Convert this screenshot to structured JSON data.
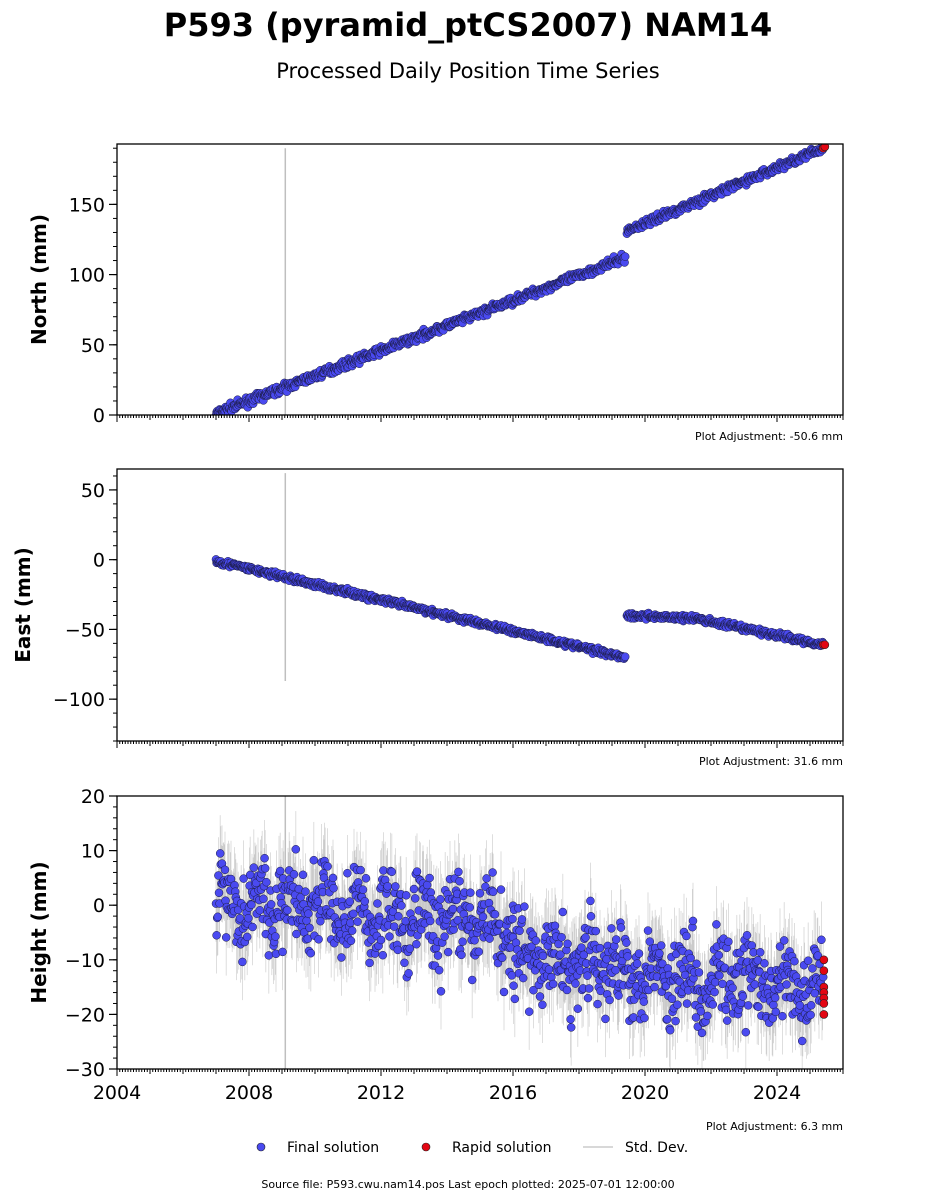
{
  "figure": {
    "title": "P593 (pyramid_ptCS2007) NAM14",
    "subtitle": "Processed Daily Position Time Series",
    "footer": "Source file: P593.cwu.nam14.pos  Last epoch plotted: 2025-07-01 12:00:00"
  },
  "legend": {
    "final": "Final solution",
    "rapid": "Rapid solution",
    "std": "Std. Dev."
  },
  "colors": {
    "final": "#4a4af0",
    "rapid": "#e30613",
    "std": "#bfbfbf"
  },
  "chart_data": [
    {
      "type": "scatter",
      "name": "north",
      "ylabel": "North (mm)",
      "adjustment": "Plot Adjustment: -50.6 mm",
      "xlim": [
        2004,
        2026
      ],
      "ylim": [
        0,
        193
      ],
      "yticks": [
        0,
        50,
        100,
        150
      ],
      "yticklabels": [
        "0",
        "50",
        "100",
        "150"
      ],
      "outlier": {
        "x": 2009.1,
        "ymin": 0,
        "ymax": 190
      },
      "segments": [
        {
          "x0": 2007.0,
          "x1": 2019.4,
          "y0": 1,
          "y1": 112,
          "noise": 2.0
        },
        {
          "x0": 2019.45,
          "x1": 2025.4,
          "y0": 131,
          "y1": 190,
          "noise": 2.0
        }
      ],
      "rapid": [
        [
          2025.4,
          190
        ],
        [
          2025.45,
          191
        ]
      ]
    },
    {
      "type": "scatter",
      "name": "east",
      "ylabel": "East (mm)",
      "adjustment": "Plot Adjustment: 31.6 mm",
      "xlim": [
        2004,
        2026
      ],
      "ylim": [
        -130,
        65
      ],
      "yticks": [
        -100,
        -50,
        0,
        50
      ],
      "yticklabels": [
        "−100",
        "−50",
        "0",
        "50"
      ],
      "outlier": {
        "x": 2009.1,
        "ymin": -87,
        "ymax": 62
      },
      "segments": [
        {
          "x0": 2007.0,
          "x1": 2019.4,
          "y0": -1,
          "y1": -70,
          "noise": 1.5
        },
        {
          "x0": 2019.45,
          "x1": 2025.4,
          "y0": -40,
          "y1": -61,
          "noise": 1.5,
          "bend": 2021.5,
          "ybend": -42
        }
      ],
      "rapid": [
        [
          2025.4,
          -61
        ],
        [
          2025.45,
          -61
        ]
      ]
    },
    {
      "type": "scatter",
      "name": "height",
      "ylabel": "Height (mm)",
      "adjustment": "Plot Adjustment: 6.3 mm",
      "xlim": [
        2004,
        2026
      ],
      "ylim": [
        -30,
        20
      ],
      "yticks": [
        -30,
        -20,
        -10,
        0,
        10,
        20
      ],
      "yticklabels": [
        "−30",
        "−20",
        "−10",
        "0",
        "10",
        "20"
      ],
      "xticks": [
        2004,
        2008,
        2012,
        2016,
        2020,
        2024
      ],
      "xticklabels": [
        "2004",
        "2008",
        "2012",
        "2016",
        "2020",
        "2024"
      ],
      "outlier": {
        "x": 2009.1,
        "ymin": -30,
        "ymax": 20
      },
      "segments": [
        {
          "x0": 2007.0,
          "x1": 2016.0,
          "y0": 1,
          "y1": -4,
          "noise": 5.5
        },
        {
          "x0": 2016.0,
          "x1": 2025.4,
          "y0": -9,
          "y1": -16,
          "noise": 5.5
        }
      ],
      "rapid": [
        [
          2025.42,
          -10
        ],
        [
          2025.42,
          -12
        ],
        [
          2025.42,
          -15
        ],
        [
          2025.42,
          -16
        ],
        [
          2025.42,
          -17
        ],
        [
          2025.42,
          -18
        ],
        [
          2025.42,
          -20
        ]
      ]
    }
  ]
}
